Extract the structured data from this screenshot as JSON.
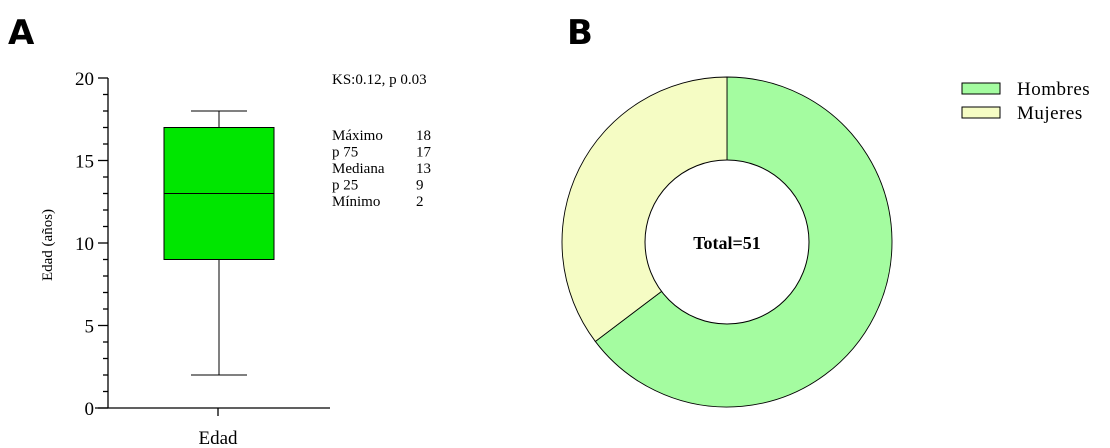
{
  "chart_data": [
    {
      "panel": "A",
      "type": "box",
      "ylabel": "Edad (años)",
      "categories": [
        "Edad"
      ],
      "ylim": [
        0,
        20
      ],
      "yticks": [
        0,
        5,
        10,
        15,
        20
      ],
      "box": {
        "min": 2,
        "q1": 9,
        "median": 13,
        "q3": 17,
        "max": 18
      },
      "fill_color": "#00e600",
      "annotation": "KS:0.12, p 0.03",
      "stats_table": [
        {
          "label": "Máximo",
          "value": "18"
        },
        {
          "label": "p 75",
          "value": "17"
        },
        {
          "label": "Mediana",
          "value": "13"
        },
        {
          "label": "p 25",
          "value": "9"
        },
        {
          "label": "Mínimo",
          "value": "2"
        }
      ]
    },
    {
      "panel": "B",
      "type": "pie",
      "center_label": "Total=51",
      "slices": [
        {
          "name": "Hombres",
          "value": 33,
          "color": "#a4fca0"
        },
        {
          "name": "Mujeres",
          "value": 18,
          "color": "#f5fcc4"
        }
      ],
      "legend_position": "top-right"
    }
  ]
}
